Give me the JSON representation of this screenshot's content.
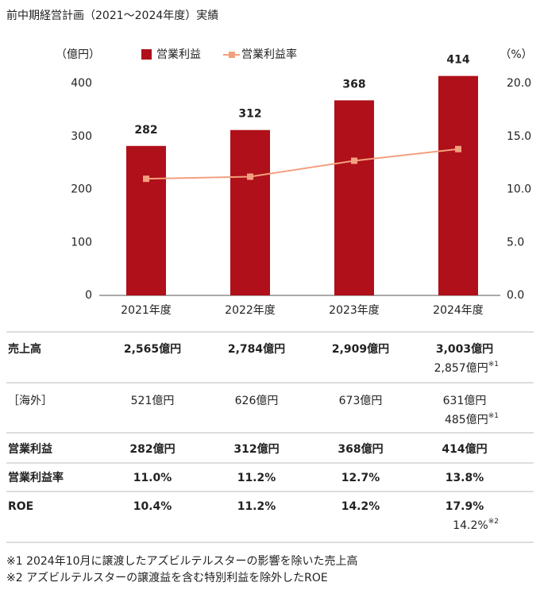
{
  "title": "前中期経営計画（2021～2024年度）実績",
  "chart_data": {
    "type": "bar",
    "ylabel": "（億円）",
    "y2label": "（%）",
    "categories": [
      "2021年度",
      "2022年度",
      "2023年度",
      "2024年度"
    ],
    "series": [
      {
        "name": "営業利益",
        "type": "bar",
        "color": "#b0101a",
        "values": [
          282,
          312,
          368,
          414
        ]
      },
      {
        "name": "営業利益率",
        "type": "line",
        "axis": "y2",
        "color": "#f2a07f",
        "values": [
          11.0,
          11.2,
          12.7,
          13.8
        ]
      }
    ],
    "ylim": [
      0,
      400
    ],
    "yticks": [
      0,
      100,
      200,
      300,
      400
    ],
    "y2lim": [
      0,
      20
    ],
    "y2ticks": [
      {
        "value": 0,
        "label": "0.0"
      },
      {
        "value": 5,
        "label": "5.0"
      },
      {
        "value": 10,
        "label": "10.0"
      },
      {
        "value": 15,
        "label": "15.0"
      },
      {
        "value": 20,
        "label": "20.0"
      }
    ],
    "legend": "top",
    "grid": false
  },
  "table": {
    "rows": [
      {
        "label": "売上高",
        "bold": true,
        "cells": [
          "2,565億円",
          "2,784億円",
          "2,909億円",
          "3,003億円"
        ],
        "note": {
          "text": "2,857億円",
          "mark": "※1"
        }
      },
      {
        "label": "［海外］",
        "bold": false,
        "cells": [
          "521億円",
          "626億円",
          "673億円",
          "631億円"
        ],
        "note": {
          "text": "485億円",
          "mark": "※1"
        }
      },
      {
        "label": "営業利益",
        "bold": true,
        "cells": [
          "282億円",
          "312億円",
          "368億円",
          "414億円"
        ]
      },
      {
        "label": "営業利益率",
        "bold": true,
        "cells": [
          "11.0%",
          "11.2%",
          "12.7%",
          "13.8%"
        ]
      },
      {
        "label": "ROE",
        "bold": true,
        "cells": [
          "10.4%",
          "11.2%",
          "14.2%",
          "17.9%"
        ],
        "note": {
          "text": "14.2%",
          "mark": "※2"
        }
      }
    ]
  },
  "footnotes": [
    "※1 2024年10月に譲渡したアズビルテルスターの影響を除いた売上高",
    "※2 アズビルテルスターの譲渡益を含む特別利益を除外したROE"
  ]
}
